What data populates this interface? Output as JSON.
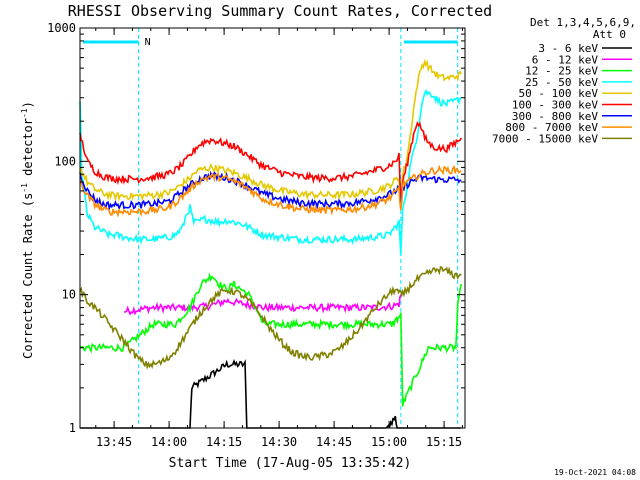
{
  "chart_data": {
    "type": "line",
    "title": "RHESSI Observing Summary Count Rates, Corrected",
    "xlabel": "Start Time (17-Aug-05 13:35:42)",
    "ylabel_main": "Corrected Count Rate (s",
    "ylabel_sup1": "-1",
    "ylabel_mid": " detector",
    "ylabel_sup2": "-1",
    "ylabel_end": ")",
    "yscale": "log",
    "ylim": [
      1,
      1000
    ],
    "xlim_minutes": [
      0,
      105
    ],
    "x_ticks": [
      {
        "label": "13:45",
        "t": 9.3
      },
      {
        "label": "14:00",
        "t": 24.3
      },
      {
        "label": "14:15",
        "t": 39.3
      },
      {
        "label": "14:30",
        "t": 54.3
      },
      {
        "label": "14:45",
        "t": 69.3
      },
      {
        "label": "15:00",
        "t": 84.3
      },
      {
        "label": "15:15",
        "t": 99.3
      }
    ],
    "y_ticks": [
      {
        "label": "1",
        "v": 1
      },
      {
        "label": "10",
        "v": 10
      },
      {
        "label": "100",
        "v": 100
      },
      {
        "label": "1000",
        "v": 1000
      }
    ],
    "legend_header": [
      "Det 1,3,4,5,6,9,",
      "Att 0"
    ],
    "night_marker_label": "N",
    "night_bars": [
      [
        0,
        16
      ],
      [
        87.5,
        103
      ]
    ],
    "night_lines": [
      0,
      16,
      87.5,
      103
    ],
    "series": [
      {
        "name": "3 - 6 keV",
        "color": "#000000",
        "x": [
          0,
          30,
          30.5,
          40,
          45,
          45.5,
          65,
          70,
          70.5,
          72,
          76,
          80,
          82,
          83.5,
          86,
          86.5,
          87,
          104
        ],
        "y": [
          1,
          1,
          2,
          3,
          3,
          1,
          1,
          1,
          1,
          1,
          1,
          1,
          1,
          1,
          1.2,
          1,
          1,
          1
        ]
      },
      {
        "name": "6 - 12 keV",
        "color": "#ff00ff",
        "x": [
          12,
          20,
          30,
          35,
          40,
          45,
          50,
          60,
          70,
          80,
          85,
          87,
          87.5
        ],
        "y": [
          7.5,
          8,
          8,
          8.2,
          9,
          8.5,
          8,
          8,
          8,
          8,
          8.2,
          8.5,
          10
        ]
      },
      {
        "name": "12 - 25 keV",
        "color": "#00ff00",
        "x": [
          0,
          12,
          20,
          26,
          30,
          33,
          36,
          38,
          40,
          42,
          46,
          48,
          50,
          60,
          70,
          80,
          85,
          87.5,
          88,
          93,
          95,
          100,
          102.5,
          103,
          104
        ],
        "y": [
          4,
          4,
          6,
          6,
          8,
          12,
          14,
          12,
          11,
          12,
          10,
          8,
          6,
          6,
          6,
          6,
          6,
          7,
          1.5,
          3,
          4,
          4,
          4,
          8,
          12
        ]
      },
      {
        "name": "25 - 50 keV",
        "color": "#00ffff",
        "x": [
          0,
          0.5,
          2,
          4,
          6,
          8,
          10,
          12,
          16,
          20,
          24,
          26,
          28,
          29,
          30,
          31,
          32,
          33,
          34,
          36,
          38,
          40,
          42,
          44,
          46,
          48,
          50,
          55,
          60,
          65,
          70,
          75,
          80,
          84,
          86,
          87,
          87.5,
          88,
          89,
          90,
          91,
          92,
          93,
          94,
          96,
          98,
          100,
          102,
          104
        ],
        "y": [
          300,
          80,
          40,
          32,
          30,
          28,
          28,
          27,
          26,
          26,
          27,
          28,
          32,
          40,
          45,
          35,
          35,
          36,
          37,
          36,
          35,
          36,
          35,
          34,
          32,
          30,
          28,
          27,
          26,
          26,
          26,
          26,
          27,
          28,
          32,
          35,
          20,
          45,
          60,
          90,
          120,
          160,
          250,
          330,
          320,
          280,
          270,
          280,
          300
        ]
      },
      {
        "name": "50 - 100 keV",
        "color": "#e6c800",
        "x": [
          0,
          2,
          4,
          6,
          8,
          10,
          12,
          16,
          20,
          24,
          26,
          28,
          30,
          32,
          34,
          36,
          38,
          40,
          42,
          44,
          46,
          48,
          50,
          55,
          60,
          65,
          70,
          75,
          80,
          84,
          86,
          87,
          87.5,
          88,
          89,
          90,
          91,
          92,
          93,
          94,
          96,
          98,
          100,
          102,
          104
        ],
        "y": [
          90,
          70,
          62,
          58,
          56,
          55,
          55,
          55,
          56,
          58,
          62,
          68,
          75,
          85,
          88,
          90,
          88,
          85,
          82,
          78,
          74,
          70,
          66,
          60,
          57,
          56,
          56,
          57,
          60,
          65,
          72,
          75,
          50,
          80,
          100,
          150,
          250,
          380,
          500,
          560,
          480,
          430,
          420,
          430,
          450
        ]
      },
      {
        "name": "100 - 300 keV",
        "color": "#ff0000",
        "x": [
          0,
          2,
          4,
          6,
          8,
          10,
          12,
          16,
          20,
          24,
          26,
          28,
          30,
          32,
          34,
          36,
          38,
          40,
          42,
          44,
          46,
          48,
          50,
          55,
          60,
          65,
          70,
          75,
          80,
          84,
          86,
          87,
          87.5,
          88,
          89,
          90,
          91,
          92,
          93,
          94,
          96,
          98,
          100,
          102,
          104
        ],
        "y": [
          160,
          100,
          85,
          78,
          75,
          74,
          74,
          74,
          76,
          80,
          86,
          95,
          110,
          130,
          140,
          145,
          140,
          135,
          130,
          120,
          110,
          100,
          92,
          82,
          77,
          75,
          75,
          78,
          85,
          92,
          100,
          110,
          50,
          70,
          90,
          120,
          160,
          200,
          180,
          150,
          130,
          125,
          125,
          135,
          150
        ]
      },
      {
        "name": "300 - 800 keV",
        "color": "#0000ff",
        "x": [
          0,
          2,
          4,
          6,
          8,
          10,
          12,
          16,
          20,
          24,
          26,
          28,
          30,
          32,
          34,
          36,
          38,
          40,
          42,
          44,
          46,
          48,
          50,
          55,
          60,
          65,
          70,
          75,
          80,
          84,
          86,
          87,
          87.5,
          88,
          89,
          90,
          91,
          92,
          93,
          94,
          96,
          98,
          100,
          102,
          104
        ],
        "y": [
          80,
          60,
          52,
          48,
          47,
          47,
          47,
          47,
          48,
          50,
          54,
          60,
          66,
          72,
          76,
          78,
          77,
          75,
          72,
          69,
          65,
          61,
          57,
          52,
          49,
          48,
          48,
          49,
          52,
          56,
          60,
          62,
          45,
          62,
          66,
          70,
          72,
          74,
          75,
          75,
          74,
          73,
          73,
          73,
          72
        ]
      },
      {
        "name": "800 - 7000 keV",
        "color": "#ff8c00",
        "x": [
          0,
          2,
          4,
          6,
          8,
          10,
          12,
          16,
          20,
          24,
          26,
          28,
          30,
          32,
          34,
          36,
          38,
          40,
          42,
          44,
          46,
          48,
          50,
          55,
          60,
          65,
          70,
          75,
          80,
          84,
          86,
          87,
          87.5,
          88,
          89,
          90,
          91,
          92,
          93,
          94,
          96,
          98,
          100,
          102,
          104
        ],
        "y": [
          70,
          55,
          48,
          44,
          42,
          42,
          42,
          42,
          43,
          45,
          49,
          55,
          62,
          70,
          75,
          77,
          76,
          74,
          71,
          67,
          62,
          57,
          52,
          47,
          44,
          43,
          43,
          44,
          47,
          52,
          58,
          62,
          42,
          66,
          70,
          72,
          75,
          78,
          80,
          82,
          85,
          86,
          86,
          86,
          85
        ]
      },
      {
        "name": "7000 - 15000 keV",
        "color": "#808000",
        "x": [
          0,
          2,
          4,
          6,
          8,
          10,
          12,
          14,
          16,
          18,
          20,
          22,
          24,
          26,
          28,
          30,
          32,
          34,
          36,
          38,
          40,
          42,
          44,
          46,
          48,
          50,
          52,
          54,
          56,
          58,
          60,
          62,
          64,
          66,
          68,
          70,
          72,
          74,
          76,
          78,
          80,
          82,
          84,
          86,
          87.5,
          88,
          90,
          92,
          94,
          96,
          98,
          100,
          102,
          104
        ],
        "y": [
          11,
          9,
          8,
          7,
          6,
          5.2,
          4.5,
          3.8,
          3.3,
          3.0,
          3.0,
          3.1,
          3.3,
          3.8,
          4.6,
          5.6,
          6.8,
          8,
          9.2,
          10.2,
          10.8,
          10.6,
          10,
          9,
          7.8,
          6.6,
          5.5,
          4.7,
          4.1,
          3.7,
          3.5,
          3.4,
          3.4,
          3.5,
          3.6,
          3.8,
          4.2,
          4.8,
          5.5,
          6.5,
          7.6,
          8.8,
          10,
          11,
          10,
          10,
          11.5,
          13,
          14,
          15,
          15.5,
          15,
          14,
          14
        ]
      }
    ]
  },
  "footer_timestamp": "19-Oct-2021 04:08"
}
